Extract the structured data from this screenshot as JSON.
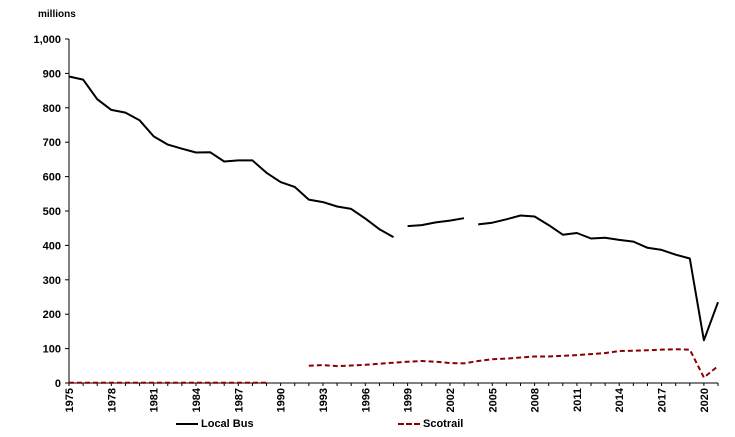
{
  "chart_data": {
    "type": "line",
    "ylabel": "millions",
    "ylim": [
      0,
      1000
    ],
    "yticks": [
      0,
      100,
      200,
      300,
      400,
      500,
      600,
      700,
      800,
      900,
      1000
    ],
    "ytick_labels": [
      "0",
      "100",
      "200",
      "300",
      "400",
      "500",
      "600",
      "700",
      "800",
      "900",
      "1,000"
    ],
    "xlim": [
      1975,
      2021
    ],
    "xticks": [
      1975,
      1978,
      1981,
      1984,
      1987,
      1990,
      1993,
      1996,
      1999,
      2002,
      2005,
      2008,
      2011,
      2014,
      2017,
      2020
    ],
    "grid": false,
    "legend_position": "bottom",
    "series": [
      {
        "name": "Local Bus",
        "color": "#000000",
        "style": "solid",
        "segments": [
          [
            [
              1975,
              891
            ],
            [
              1976,
              882
            ],
            [
              1977,
              825
            ],
            [
              1978,
              794
            ],
            [
              1979,
              786
            ],
            [
              1980,
              764
            ],
            [
              1981,
              717
            ],
            [
              1982,
              693
            ],
            [
              1983,
              681
            ],
            [
              1984,
              670
            ],
            [
              1985,
              671
            ],
            [
              1986,
              644
            ],
            [
              1987,
              647
            ],
            [
              1988,
              647
            ],
            [
              1989,
              611
            ],
            [
              1990,
              584
            ],
            [
              1991,
              570
            ],
            [
              1992,
              533
            ],
            [
              1993,
              526
            ],
            [
              1994,
              513
            ],
            [
              1995,
              506
            ],
            [
              1996,
              478
            ],
            [
              1997,
              447
            ],
            [
              1998,
              424
            ]
          ],
          [
            [
              1999,
              456
            ],
            [
              2000,
              459
            ],
            [
              2001,
              467
            ],
            [
              2002,
              472
            ],
            [
              2003,
              479
            ]
          ],
          [
            [
              2004,
              461
            ],
            [
              2005,
              466
            ],
            [
              2006,
              476
            ],
            [
              2007,
              487
            ],
            [
              2008,
              484
            ],
            [
              2009,
              459
            ],
            [
              2010,
              431
            ],
            [
              2011,
              436
            ],
            [
              2012,
              420
            ],
            [
              2013,
              422
            ],
            [
              2014,
              416
            ],
            [
              2015,
              411
            ],
            [
              2016,
              393
            ],
            [
              2017,
              387
            ],
            [
              2018,
              373
            ],
            [
              2019,
              362
            ],
            [
              2020,
              124
            ],
            [
              2021,
              235
            ]
          ]
        ]
      },
      {
        "name": "Scotrail",
        "color": "#8b0000",
        "style": "dashed",
        "segments": [
          [
            [
              1975,
              1
            ],
            [
              1976,
              1
            ],
            [
              1977,
              1
            ],
            [
              1978,
              1
            ],
            [
              1979,
              1
            ],
            [
              1980,
              1
            ],
            [
              1981,
              1
            ],
            [
              1982,
              1
            ],
            [
              1983,
              1
            ],
            [
              1984,
              1
            ],
            [
              1985,
              1
            ],
            [
              1986,
              1
            ],
            [
              1987,
              1
            ],
            [
              1988,
              1
            ],
            [
              1989,
              1
            ]
          ],
          [
            [
              1992,
              50
            ],
            [
              1993,
              52
            ],
            [
              1994,
              49
            ],
            [
              1995,
              51
            ],
            [
              1996,
              53
            ],
            [
              1997,
              56
            ],
            [
              1998,
              59
            ],
            [
              1999,
              62
            ],
            [
              2000,
              64
            ],
            [
              2001,
              62
            ],
            [
              2002,
              58
            ],
            [
              2003,
              57
            ],
            [
              2004,
              64
            ],
            [
              2005,
              69
            ],
            [
              2006,
              71
            ],
            [
              2007,
              74
            ],
            [
              2008,
              77
            ],
            [
              2009,
              77
            ],
            [
              2010,
              79
            ],
            [
              2011,
              81
            ],
            [
              2012,
              84
            ],
            [
              2013,
              87
            ],
            [
              2014,
              93
            ],
            [
              2015,
              94
            ],
            [
              2016,
              95
            ],
            [
              2017,
              97
            ],
            [
              2018,
              98
            ],
            [
              2019,
              97
            ],
            [
              2020,
              16
            ],
            [
              2021,
              49
            ]
          ]
        ]
      }
    ]
  }
}
